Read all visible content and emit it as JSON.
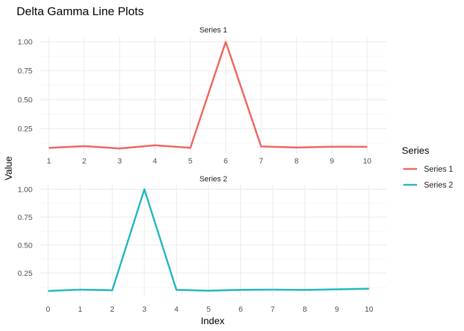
{
  "title": "Delta Gamma Line Plots",
  "xlabel": "Index",
  "ylabel": "Value",
  "legend": {
    "title": "Series",
    "placement": "right",
    "entries": [
      {
        "label": "Series 1",
        "color": "#F0645E"
      },
      {
        "label": "Series 2",
        "color": "#1FB8BD"
      }
    ]
  },
  "chart_data": [
    {
      "type": "line",
      "panel_label": "Series 1",
      "color": "#F0645E",
      "x": [
        1,
        2,
        3,
        4,
        5,
        6,
        7,
        8,
        9,
        10
      ],
      "y": [
        0.085,
        0.1,
        0.08,
        0.107,
        0.085,
        1.0,
        0.097,
        0.088,
        0.095,
        0.094
      ],
      "xticks": [
        "1",
        "2",
        "3",
        "4",
        "5",
        "6",
        "7",
        "8",
        "9",
        "10"
      ],
      "yticks": [
        "0.25",
        "0.50",
        "0.75",
        "1.00"
      ],
      "xlim": [
        0.75,
        10.55
      ],
      "ylim": [
        0.04,
        1.04
      ],
      "grid": true
    },
    {
      "type": "line",
      "panel_label": "Series 2",
      "color": "#1FB8BD",
      "x": [
        0,
        1,
        2,
        3,
        4,
        5,
        6,
        7,
        8,
        9,
        10
      ],
      "y": [
        0.09,
        0.102,
        0.096,
        1.0,
        0.1,
        0.092,
        0.1,
        0.102,
        0.099,
        0.104,
        0.11
      ],
      "xticks": [
        "0",
        "1",
        "2",
        "3",
        "4",
        "5",
        "6",
        "7",
        "8",
        "9",
        "10"
      ],
      "yticks": [
        "0.25",
        "0.50",
        "0.75",
        "1.00"
      ],
      "xlim": [
        -0.25,
        10.55
      ],
      "ylim": [
        0.04,
        1.04
      ],
      "grid": true
    }
  ]
}
